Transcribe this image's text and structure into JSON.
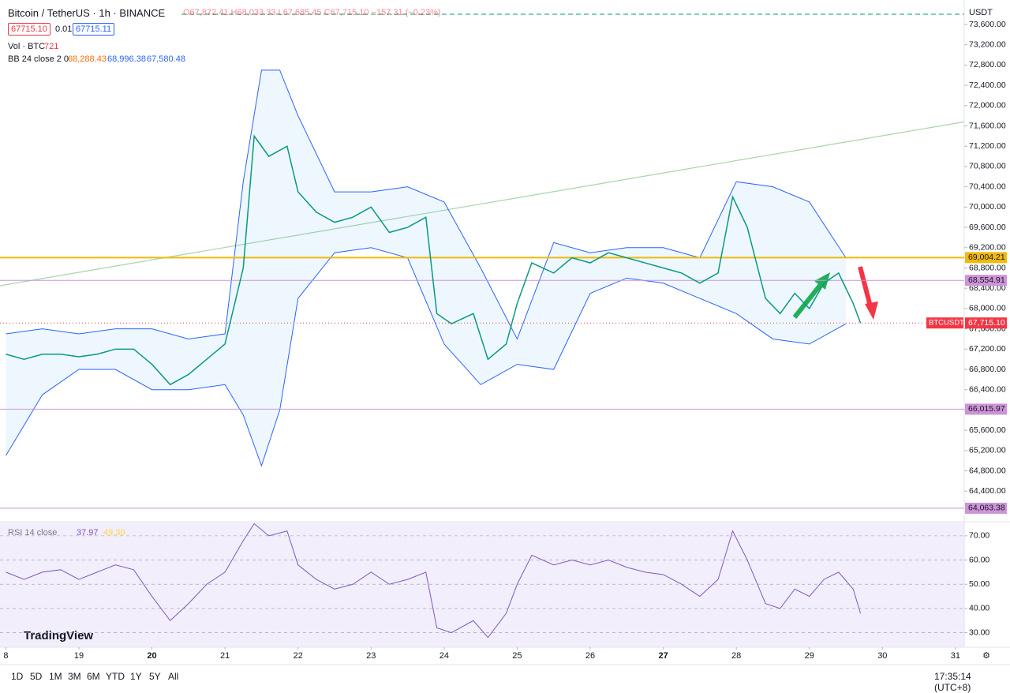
{
  "header": {
    "symbol": "Bitcoin / TetherUS · 1h · BINANCE",
    "ohlc": "O67,872.41 H68,033.33 L67,685.45 C67,715.10 −157.31 (−0.23%)",
    "sell": "67715.10",
    "spread": "0.01",
    "buy": "67715.11",
    "volume_label": "Vol · BTC",
    "volume_value": "721",
    "bb_label": "BB 24 close 2 0",
    "bb_basis": "68,288.43",
    "bb_upper": "68,996.38",
    "bb_lower": "67,580.48",
    "rsi_label": "RSI 14 close",
    "rsi_value": "37.97",
    "rsi_ma": "49.30",
    "brand": "TradingView",
    "currency": "USDT"
  },
  "toolbar": {
    "ranges": [
      "1D",
      "5D",
      "1M",
      "3M",
      "6M",
      "YTD",
      "1Y",
      "5Y",
      "All"
    ],
    "clock": "17:35:14 (UTC+8)"
  },
  "chart_data": [
    {
      "type": "line",
      "title": "Bitcoin / TetherUS · 1h · BINANCE",
      "x": [
        18.0,
        18.25,
        18.5,
        18.75,
        19.0,
        19.25,
        19.5,
        19.75,
        20.0,
        20.25,
        20.5,
        20.75,
        21.0,
        21.25,
        21.4,
        21.6,
        21.85,
        22.0,
        22.25,
        22.5,
        22.75,
        23.0,
        23.25,
        23.5,
        23.75,
        23.9,
        24.1,
        24.4,
        24.6,
        24.85,
        25.0,
        25.2,
        25.5,
        25.75,
        26.0,
        26.25,
        26.5,
        26.75,
        27.0,
        27.25,
        27.5,
        27.75,
        27.95,
        28.15,
        28.4,
        28.6,
        28.8,
        29.0,
        29.2,
        29.4,
        29.6,
        29.7
      ],
      "series": [
        {
          "name": "BTCUSDT",
          "color": "#089981",
          "values": [
            67100,
            67000,
            67100,
            67100,
            67050,
            67100,
            67200,
            67200,
            66900,
            66500,
            66700,
            67000,
            67300,
            68800,
            71400,
            71000,
            71200,
            70300,
            69900,
            69700,
            69800,
            70000,
            69500,
            69600,
            69800,
            67900,
            67700,
            67900,
            67000,
            67300,
            68100,
            68900,
            68700,
            69000,
            68900,
            69100,
            69000,
            68900,
            68800,
            68700,
            68500,
            68700,
            70200,
            69600,
            68200,
            67900,
            68300,
            68000,
            68500,
            68700,
            68100,
            67715.1
          ]
        }
      ],
      "bollinger": {
        "name": "BB 24 close 2 0",
        "color": "#2962ff",
        "x": [
          18,
          18.5,
          19,
          19.5,
          20,
          20.5,
          21,
          21.25,
          21.5,
          21.75,
          22,
          22.5,
          23,
          23.5,
          24,
          24.5,
          25,
          25.5,
          26,
          26.5,
          27,
          27.5,
          28,
          28.5,
          29,
          29.5
        ],
        "upper": [
          67500,
          67600,
          67500,
          67600,
          67600,
          67400,
          67500,
          70500,
          72700,
          72700,
          71800,
          70300,
          70300,
          70400,
          70100,
          68800,
          67400,
          69300,
          69100,
          69200,
          69200,
          69000,
          70500,
          70400,
          70100,
          69000
        ],
        "lower": [
          65100,
          66300,
          66800,
          66800,
          66400,
          66400,
          66500,
          65900,
          64900,
          66000,
          68200,
          69100,
          69200,
          69000,
          67300,
          66500,
          66900,
          66800,
          68300,
          68600,
          68500,
          68200,
          67900,
          67400,
          67300,
          67700
        ]
      },
      "trendline": {
        "color": "#a5d6a7",
        "x": [
          17.92,
          31.12
        ],
        "y": [
          68450,
          71680
        ]
      },
      "levels": [
        {
          "value": 69004.21,
          "label": "69,004.21",
          "color": "#f0b90b"
        },
        {
          "value": 68554.91,
          "label": "68,554.91",
          "color": "#ce93d8"
        },
        {
          "value": 66015.97,
          "label": "66,015.97",
          "color": "#ce93d8"
        },
        {
          "value": 64063.38,
          "label": "64,063.38",
          "color": "#ce93d8"
        }
      ],
      "last": {
        "name": "BTCUSDT",
        "value": 67715.1,
        "label": "67,715.10",
        "color": "#f23645"
      },
      "xlim": [
        17.92,
        31.12
      ],
      "xticks": [
        {
          "value": 18,
          "label": "8"
        },
        19,
        20,
        21,
        22,
        23,
        24,
        25,
        26,
        27,
        28,
        29,
        30,
        31
      ],
      "ylim": [
        63813,
        74082
      ],
      "yticks": [
        {
          "value": 64400,
          "label": "64,400.00"
        },
        {
          "value": 64800,
          "label": "64,800.00"
        },
        {
          "value": 65200,
          "label": "65,200.00"
        },
        {
          "value": 65600,
          "label": "65,600.00"
        },
        {
          "value": 66000,
          "label": "66,000.00"
        },
        {
          "value": 66400,
          "label": "66,400.00"
        },
        {
          "value": 66800,
          "label": "66,800.00"
        },
        {
          "value": 67200,
          "label": "67,200.00"
        },
        {
          "value": 67600,
          "label": "67,600.00"
        },
        {
          "value": 68000,
          "label": "68,000.00"
        },
        {
          "value": 68400,
          "label": "68,400.00"
        },
        {
          "value": 68800,
          "label": "68,800.00"
        },
        {
          "value": 69200,
          "label": "69,200.00"
        },
        {
          "value": 69600,
          "label": "69,600.00"
        },
        {
          "value": 70000,
          "label": "70,000.00"
        },
        {
          "value": 70400,
          "label": "70,400.00"
        },
        {
          "value": 70800,
          "label": "70,800.00"
        },
        {
          "value": 71200,
          "label": "71,200.00"
        },
        {
          "value": 71600,
          "label": "71,600.00"
        },
        {
          "value": 72000,
          "label": "72,000.00"
        },
        {
          "value": 72400,
          "label": "72,400.00"
        },
        {
          "value": 72800,
          "label": "72,800.00"
        },
        {
          "value": 73200,
          "label": "73,200.00"
        },
        {
          "value": 73600,
          "label": "73,600.00"
        }
      ]
    },
    {
      "type": "line",
      "title": "RSI 14 close",
      "x": [
        18.0,
        18.25,
        18.5,
        18.75,
        19.0,
        19.25,
        19.5,
        19.75,
        20.0,
        20.25,
        20.5,
        20.75,
        21.0,
        21.25,
        21.4,
        21.6,
        21.85,
        22.0,
        22.25,
        22.5,
        22.75,
        23.0,
        23.25,
        23.5,
        23.75,
        23.9,
        24.1,
        24.4,
        24.6,
        24.85,
        25.0,
        25.2,
        25.5,
        25.75,
        26.0,
        26.25,
        26.5,
        26.75,
        27.0,
        27.25,
        27.5,
        27.75,
        27.95,
        28.15,
        28.4,
        28.6,
        28.8,
        29.0,
        29.2,
        29.4,
        29.6,
        29.7
      ],
      "series": [
        {
          "name": "RSI 14 close",
          "color": "#7e57c2",
          "values": [
            55,
            52,
            55,
            56,
            52,
            55,
            58,
            56,
            45,
            35,
            42,
            50,
            55,
            68,
            75,
            70,
            72,
            58,
            52,
            48,
            50,
            55,
            50,
            52,
            55,
            32,
            30,
            35,
            28,
            38,
            50,
            62,
            58,
            60,
            58,
            60,
            57,
            55,
            54,
            50,
            45,
            52,
            72,
            60,
            42,
            40,
            48,
            45,
            52,
            55,
            48,
            37.97
          ]
        }
      ],
      "xlim": [
        17.92,
        31.12
      ],
      "ylim": [
        24,
        75.5
      ],
      "yticks": [
        {
          "value": 30,
          "label": "30.00"
        },
        {
          "value": 40,
          "label": "40.00"
        },
        {
          "value": 50,
          "label": "50.00"
        },
        {
          "value": 60,
          "label": "60.00"
        },
        {
          "value": 70,
          "label": "70.00"
        }
      ]
    }
  ]
}
